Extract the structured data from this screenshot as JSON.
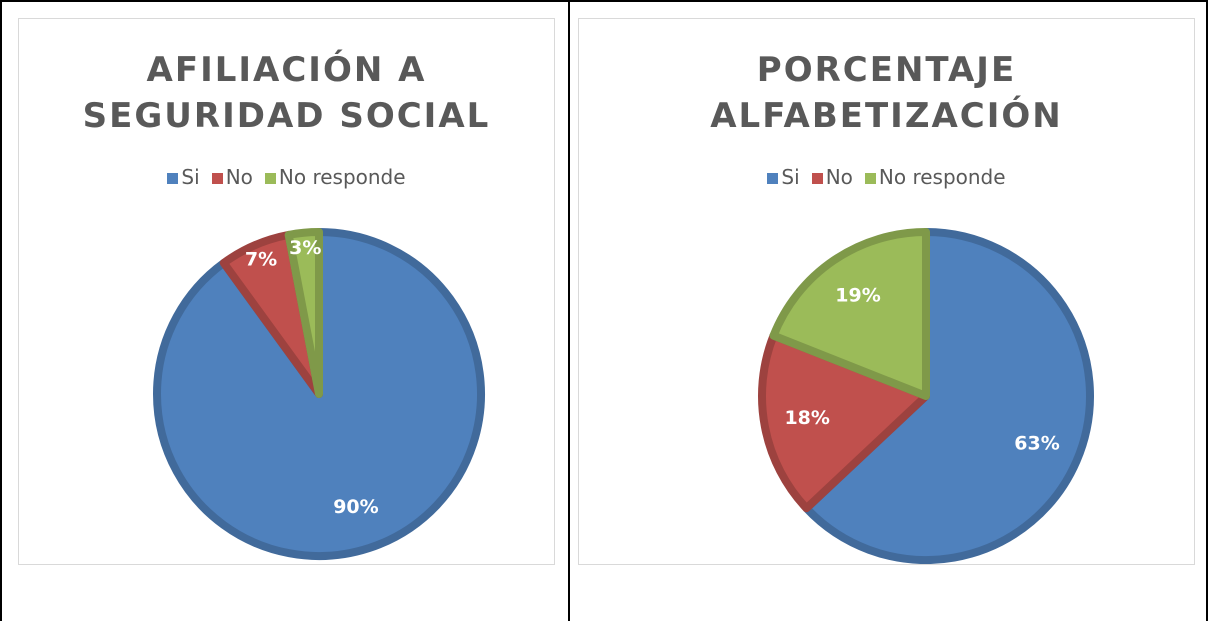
{
  "chart_data": [
    {
      "type": "pie",
      "title": "AFILIACIÓN A SEGURIDAD SOCIAL",
      "categories": [
        "Si",
        "No",
        "No responde"
      ],
      "values": [
        90,
        7,
        3
      ],
      "value_labels": [
        "90%",
        "7%",
        "3%"
      ],
      "colors": [
        "#4f81bd",
        "#c0504d",
        "#9bbb59"
      ]
    },
    {
      "type": "pie",
      "title": "PORCENTAJE ALFABETIZACIÓN",
      "categories": [
        "Si",
        "No",
        "No responde"
      ],
      "values": [
        63,
        18,
        19
      ],
      "value_labels": [
        "63%",
        "18%",
        "19%"
      ],
      "colors": [
        "#4f81bd",
        "#c0504d",
        "#9bbb59"
      ]
    }
  ]
}
